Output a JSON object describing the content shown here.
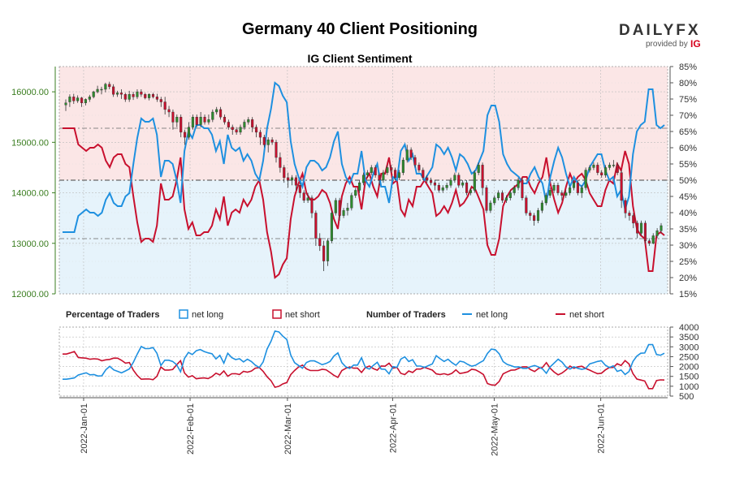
{
  "chart_data": {
    "type": "line",
    "title": "Germany 40 Client Positioning",
    "subtitle": "IG Client Sentiment",
    "brand": {
      "name": "DAILYFX",
      "provided_by": "provided by",
      "ig": "IG"
    },
    "price_axis": {
      "ticks": [
        "12000.00",
        "13000.00",
        "14000.00",
        "15000.00",
        "16000.00"
      ],
      "range": [
        12000,
        16500
      ],
      "color": "#3a7d1f"
    },
    "percent_axis": {
      "ticks": [
        "15%",
        "20%",
        "25%",
        "30%",
        "35%",
        "40%",
        "45%",
        "50%",
        "55%",
        "60%",
        "65%",
        "70%",
        "75%",
        "80%",
        "85%"
      ],
      "range": [
        15,
        85
      ]
    },
    "traders_axis": {
      "ticks": [
        "500",
        "1000",
        "1500",
        "2000",
        "2500",
        "3000",
        "3500",
        "4000"
      ],
      "range": [
        500,
        4000
      ]
    },
    "x_labels": [
      "2022-Jan-01",
      "2022-Feb-01",
      "2022-Mar-01",
      "2022-Apr-01",
      "2022-May-01",
      "2022-Jun-01"
    ],
    "legend": {
      "pct_header": "Percentage of Traders",
      "pct_long": "net long",
      "pct_short": "net short",
      "num_header": "Number of Traders",
      "num_long": "net long",
      "num_short": "net short"
    },
    "colors": {
      "net_long": "#1e90e0",
      "net_short": "#c8102e",
      "up_candle": "#2e8b2e",
      "down_candle": "#c8102e",
      "bg_long": "#e6f3fb",
      "bg_short": "#fbe6e6"
    },
    "reference_lines_pct": [
      32,
      50,
      66
    ],
    "net_long_pct": [
      34,
      34,
      34,
      34,
      39,
      40,
      41,
      40,
      40,
      39,
      40,
      44,
      46,
      43,
      42,
      42,
      45,
      46,
      55,
      63,
      69,
      68,
      68,
      69,
      64,
      51,
      56,
      56,
      55,
      50,
      43,
      59,
      65,
      63,
      67,
      67,
      66,
      66,
      64,
      59,
      62,
      55,
      64,
      60,
      59,
      60,
      56,
      58,
      56,
      52,
      50,
      56,
      66,
      72,
      80,
      79,
      76,
      74,
      62,
      55,
      51,
      48,
      54,
      56,
      56,
      55,
      53,
      54,
      57,
      62,
      65,
      55,
      51,
      49,
      52,
      52,
      59,
      50,
      48,
      52,
      55,
      48,
      48,
      43,
      51,
      50,
      59,
      61,
      56,
      58,
      52,
      52,
      50,
      52,
      54,
      61,
      60,
      58,
      60,
      57,
      53,
      58,
      57,
      55,
      52,
      53,
      56,
      59,
      70,
      73,
      73,
      68,
      58,
      55,
      53,
      52,
      51,
      49,
      49,
      52,
      54,
      51,
      49,
      43,
      51,
      56,
      60,
      57,
      52,
      48,
      51,
      49,
      48,
      50,
      54,
      56,
      58,
      58,
      53,
      50,
      51,
      45,
      47,
      41,
      45,
      58,
      65,
      67,
      68,
      78,
      78,
      67,
      66,
      67
    ],
    "traders_total": [
      2100,
      2100,
      2150,
      2200,
      2120,
      2140,
      2160,
      2080,
      2100,
      2050,
      2010,
      2200,
      2300,
      2240,
      2200,
      2100,
      2080,
      2150,
      2120,
      2200,
      2300,
      2250,
      2250,
      2260,
      2200,
      2120,
      2180,
      2180,
      2160,
      2200,
      2120,
      2150,
      2200,
      2180,
      2200,
      2250,
      2200,
      2150,
      2180,
      2130,
      2180,
      2080,
      2200,
      2150,
      2100,
      2100,
      2100,
      2150,
      2120,
      2100,
      2050,
      2100,
      2300,
      2400,
      2500,
      2500,
      2450,
      2400,
      2200,
      2100,
      2120,
      2100,
      2150,
      2150,
      2150,
      2100,
      2080,
      2100,
      2080,
      2150,
      2180,
      2100,
      2050,
      2040,
      2100,
      2100,
      2180,
      2050,
      2050,
      2080,
      2120,
      2050,
      2040,
      2000,
      2060,
      2060,
      2120,
      2150,
      2120,
      2130,
      2050,
      2050,
      2060,
      2070,
      2080,
      2200,
      2100,
      2050,
      2080,
      2030,
      2050,
      2060,
      2060,
      2020,
      2040,
      2050,
      2060,
      2050,
      2000,
      2080,
      2060,
      2050,
      2040,
      2020,
      2030,
      2000,
      2050,
      2050,
      2050,
      2020,
      2000,
      2040,
      2020,
      2030,
      2050,
      2050,
      2080,
      2050,
      2000,
      2050,
      2050,
      2050,
      2040,
      2000,
      2080,
      2060,
      2050,
      2080,
      2050,
      2050,
      2100,
      2050,
      2040,
      2050,
      2040,
      2050,
      2050,
      2100,
      2080,
      2100,
      2100,
      2050,
      2050,
      2100
    ],
    "candles": [
      {
        "o": 15740,
        "c": 15780,
        "h": 15850,
        "l": 15620
      },
      {
        "o": 15800,
        "c": 15900,
        "h": 15950,
        "l": 15700
      },
      {
        "o": 15900,
        "c": 15820,
        "h": 15960,
        "l": 15760
      },
      {
        "o": 15820,
        "c": 15880,
        "h": 15930,
        "l": 15780
      },
      {
        "o": 15880,
        "c": 15780,
        "h": 15900,
        "l": 15700
      },
      {
        "o": 15780,
        "c": 15850,
        "h": 15870,
        "l": 15730
      },
      {
        "o": 15850,
        "c": 15900,
        "h": 15940,
        "l": 15800
      },
      {
        "o": 15900,
        "c": 16000,
        "h": 16020,
        "l": 15870
      },
      {
        "o": 16000,
        "c": 16050,
        "h": 16120,
        "l": 15970
      },
      {
        "o": 16050,
        "c": 16050,
        "h": 16100,
        "l": 15950
      },
      {
        "o": 16050,
        "c": 16150,
        "h": 16180,
        "l": 15990
      },
      {
        "o": 16150,
        "c": 16100,
        "h": 16200,
        "l": 16050
      },
      {
        "o": 16100,
        "c": 15950,
        "h": 16150,
        "l": 15900
      },
      {
        "o": 15950,
        "c": 15980,
        "h": 16020,
        "l": 15900
      },
      {
        "o": 15980,
        "c": 15950,
        "h": 16050,
        "l": 15860
      },
      {
        "o": 15950,
        "c": 15850,
        "h": 15980,
        "l": 15800
      },
      {
        "o": 15850,
        "c": 15950,
        "h": 16020,
        "l": 15800
      },
      {
        "o": 15950,
        "c": 15900,
        "h": 16000,
        "l": 15840
      },
      {
        "o": 15900,
        "c": 16000,
        "h": 16050,
        "l": 15860
      },
      {
        "o": 16000,
        "c": 15950,
        "h": 16050,
        "l": 15900
      },
      {
        "o": 15950,
        "c": 15880,
        "h": 15980,
        "l": 15850
      },
      {
        "o": 15880,
        "c": 15950,
        "h": 15970,
        "l": 15830
      },
      {
        "o": 15950,
        "c": 15900,
        "h": 15980,
        "l": 15870
      },
      {
        "o": 15900,
        "c": 15850,
        "h": 15960,
        "l": 15800
      },
      {
        "o": 15850,
        "c": 15800,
        "h": 15900,
        "l": 15700
      },
      {
        "o": 15800,
        "c": 15650,
        "h": 15900,
        "l": 15550
      },
      {
        "o": 15650,
        "c": 15600,
        "h": 15720,
        "l": 15500
      },
      {
        "o": 15600,
        "c": 15400,
        "h": 15650,
        "l": 15250
      },
      {
        "o": 15400,
        "c": 15500,
        "h": 15550,
        "l": 15300
      },
      {
        "o": 15500,
        "c": 15200,
        "h": 15550,
        "l": 15100
      },
      {
        "o": 15200,
        "c": 15100,
        "h": 15250,
        "l": 14950
      },
      {
        "o": 15100,
        "c": 15300,
        "h": 15400,
        "l": 15050
      },
      {
        "o": 15300,
        "c": 15500,
        "h": 15550,
        "l": 15250
      },
      {
        "o": 15500,
        "c": 15350,
        "h": 15550,
        "l": 15300
      },
      {
        "o": 15350,
        "c": 15500,
        "h": 15600,
        "l": 15300
      },
      {
        "o": 15500,
        "c": 15400,
        "h": 15550,
        "l": 15350
      },
      {
        "o": 15400,
        "c": 15450,
        "h": 15550,
        "l": 15350
      },
      {
        "o": 15450,
        "c": 15600,
        "h": 15650,
        "l": 15400
      },
      {
        "o": 15600,
        "c": 15650,
        "h": 15700,
        "l": 15550
      },
      {
        "o": 15650,
        "c": 15500,
        "h": 15700,
        "l": 15450
      },
      {
        "o": 15500,
        "c": 15400,
        "h": 15550,
        "l": 15350
      },
      {
        "o": 15400,
        "c": 15300,
        "h": 15450,
        "l": 15250
      },
      {
        "o": 15300,
        "c": 15250,
        "h": 15350,
        "l": 15150
      },
      {
        "o": 15250,
        "c": 15200,
        "h": 15300,
        "l": 15150
      },
      {
        "o": 15200,
        "c": 15300,
        "h": 15350,
        "l": 15150
      },
      {
        "o": 15300,
        "c": 15400,
        "h": 15450,
        "l": 15250
      },
      {
        "o": 15400,
        "c": 15450,
        "h": 15500,
        "l": 15350
      },
      {
        "o": 15450,
        "c": 15300,
        "h": 15500,
        "l": 15200
      },
      {
        "o": 15300,
        "c": 15200,
        "h": 15350,
        "l": 15100
      },
      {
        "o": 15200,
        "c": 15100,
        "h": 15250,
        "l": 14950
      },
      {
        "o": 15100,
        "c": 14950,
        "h": 15150,
        "l": 14900
      },
      {
        "o": 14950,
        "c": 15050,
        "h": 15100,
        "l": 14800
      },
      {
        "o": 15050,
        "c": 15000,
        "h": 15100,
        "l": 14950
      },
      {
        "o": 15000,
        "c": 14700,
        "h": 15050,
        "l": 14600
      },
      {
        "o": 14700,
        "c": 14500,
        "h": 14800,
        "l": 14400
      },
      {
        "o": 14500,
        "c": 14300,
        "h": 14550,
        "l": 14200
      },
      {
        "o": 14300,
        "c": 14250,
        "h": 14400,
        "l": 14100
      },
      {
        "o": 14250,
        "c": 14300,
        "h": 14350,
        "l": 14150
      },
      {
        "o": 14300,
        "c": 14150,
        "h": 14350,
        "l": 14050
      },
      {
        "o": 14150,
        "c": 14000,
        "h": 14200,
        "l": 13900
      },
      {
        "o": 14000,
        "c": 13850,
        "h": 14050,
        "l": 13800
      },
      {
        "o": 13850,
        "c": 13900,
        "h": 14000,
        "l": 13800
      },
      {
        "o": 13900,
        "c": 13600,
        "h": 13950,
        "l": 13500
      },
      {
        "o": 13600,
        "c": 13100,
        "h": 13650,
        "l": 12950
      },
      {
        "o": 13100,
        "c": 12950,
        "h": 13200,
        "l": 12850
      },
      {
        "o": 12950,
        "c": 12650,
        "h": 13050,
        "l": 12450
      },
      {
        "o": 12650,
        "c": 13050,
        "h": 13100,
        "l": 12550
      },
      {
        "o": 13050,
        "c": 13600,
        "h": 13650,
        "l": 13000
      },
      {
        "o": 13600,
        "c": 13850,
        "h": 13900,
        "l": 13550
      },
      {
        "o": 13850,
        "c": 13550,
        "h": 13900,
        "l": 13450
      },
      {
        "o": 13550,
        "c": 13650,
        "h": 13700,
        "l": 13500
      },
      {
        "o": 13650,
        "c": 13700,
        "h": 13800,
        "l": 13550
      },
      {
        "o": 13700,
        "c": 13950,
        "h": 14000,
        "l": 13650
      },
      {
        "o": 13950,
        "c": 14050,
        "h": 14100,
        "l": 13900
      },
      {
        "o": 14050,
        "c": 14200,
        "h": 14250,
        "l": 14000
      },
      {
        "o": 14200,
        "c": 14350,
        "h": 14400,
        "l": 14150
      },
      {
        "o": 14350,
        "c": 14400,
        "h": 14450,
        "l": 14300
      },
      {
        "o": 14400,
        "c": 14500,
        "h": 14550,
        "l": 14350
      },
      {
        "o": 14500,
        "c": 14350,
        "h": 14550,
        "l": 14300
      },
      {
        "o": 14350,
        "c": 14250,
        "h": 14400,
        "l": 14150
      },
      {
        "o": 14250,
        "c": 14400,
        "h": 14450,
        "l": 14200
      },
      {
        "o": 14400,
        "c": 14500,
        "h": 14550,
        "l": 14350
      },
      {
        "o": 14500,
        "c": 14450,
        "h": 14550,
        "l": 14400
      },
      {
        "o": 14450,
        "c": 14300,
        "h": 14500,
        "l": 14250
      },
      {
        "o": 14300,
        "c": 14400,
        "h": 14450,
        "l": 14250
      },
      {
        "o": 14400,
        "c": 14650,
        "h": 14700,
        "l": 14350
      },
      {
        "o": 14650,
        "c": 14850,
        "h": 14950,
        "l": 14600
      },
      {
        "o": 14850,
        "c": 14700,
        "h": 14900,
        "l": 14650
      },
      {
        "o": 14700,
        "c": 14550,
        "h": 14750,
        "l": 14500
      },
      {
        "o": 14550,
        "c": 14450,
        "h": 14600,
        "l": 14400
      },
      {
        "o": 14450,
        "c": 14300,
        "h": 14500,
        "l": 14250
      },
      {
        "o": 14300,
        "c": 14250,
        "h": 14350,
        "l": 14200
      },
      {
        "o": 14250,
        "c": 14200,
        "h": 14300,
        "l": 14150
      },
      {
        "o": 14200,
        "c": 14150,
        "h": 14250,
        "l": 14050
      },
      {
        "o": 14150,
        "c": 14050,
        "h": 14200,
        "l": 14000
      },
      {
        "o": 14050,
        "c": 14100,
        "h": 14150,
        "l": 14000
      },
      {
        "o": 14100,
        "c": 14150,
        "h": 14200,
        "l": 14050
      },
      {
        "o": 14150,
        "c": 14250,
        "h": 14300,
        "l": 14100
      },
      {
        "o": 14250,
        "c": 14350,
        "h": 14400,
        "l": 14200
      },
      {
        "o": 14350,
        "c": 14150,
        "h": 14400,
        "l": 14100
      },
      {
        "o": 14150,
        "c": 14200,
        "h": 14250,
        "l": 14100
      },
      {
        "o": 14200,
        "c": 14000,
        "h": 14250,
        "l": 13950
      },
      {
        "o": 14000,
        "c": 14050,
        "h": 14100,
        "l": 13950
      },
      {
        "o": 14050,
        "c": 14400,
        "h": 14450,
        "l": 14000
      },
      {
        "o": 14400,
        "c": 14550,
        "h": 14600,
        "l": 14350
      },
      {
        "o": 14550,
        "c": 14100,
        "h": 14600,
        "l": 13950
      },
      {
        "o": 14100,
        "c": 13650,
        "h": 14150,
        "l": 13600
      },
      {
        "o": 13650,
        "c": 13800,
        "h": 13850,
        "l": 13600
      },
      {
        "o": 13800,
        "c": 13900,
        "h": 13950,
        "l": 13750
      },
      {
        "o": 13900,
        "c": 14000,
        "h": 14050,
        "l": 13850
      },
      {
        "o": 14000,
        "c": 13850,
        "h": 14050,
        "l": 13800
      },
      {
        "o": 13850,
        "c": 13900,
        "h": 13950,
        "l": 13800
      },
      {
        "o": 13900,
        "c": 14000,
        "h": 14050,
        "l": 13850
      },
      {
        "o": 14000,
        "c": 14100,
        "h": 14150,
        "l": 13950
      },
      {
        "o": 14100,
        "c": 14250,
        "h": 14300,
        "l": 14050
      },
      {
        "o": 14250,
        "c": 13900,
        "h": 14300,
        "l": 13850
      },
      {
        "o": 13900,
        "c": 13600,
        "h": 13950,
        "l": 13550
      },
      {
        "o": 13600,
        "c": 13550,
        "h": 13650,
        "l": 13450
      },
      {
        "o": 13550,
        "c": 13450,
        "h": 13600,
        "l": 13350
      },
      {
        "o": 13450,
        "c": 13650,
        "h": 13700,
        "l": 13400
      },
      {
        "o": 13650,
        "c": 13800,
        "h": 13850,
        "l": 13600
      },
      {
        "o": 13800,
        "c": 13950,
        "h": 14000,
        "l": 13750
      },
      {
        "o": 13950,
        "c": 14050,
        "h": 14100,
        "l": 13900
      },
      {
        "o": 14050,
        "c": 14150,
        "h": 14200,
        "l": 14000
      },
      {
        "o": 14150,
        "c": 14000,
        "h": 14200,
        "l": 13950
      },
      {
        "o": 14000,
        "c": 13950,
        "h": 14050,
        "l": 13850
      },
      {
        "o": 13950,
        "c": 14000,
        "h": 14050,
        "l": 13900
      },
      {
        "o": 14000,
        "c": 14100,
        "h": 14150,
        "l": 13950
      },
      {
        "o": 14100,
        "c": 14200,
        "h": 14250,
        "l": 14050
      },
      {
        "o": 14200,
        "c": 14000,
        "h": 14250,
        "l": 13950
      },
      {
        "o": 14000,
        "c": 14100,
        "h": 14150,
        "l": 13900
      },
      {
        "o": 14100,
        "c": 14450,
        "h": 14500,
        "l": 14050
      },
      {
        "o": 14450,
        "c": 14500,
        "h": 14550,
        "l": 14400
      },
      {
        "o": 14500,
        "c": 14550,
        "h": 14600,
        "l": 14450
      },
      {
        "o": 14550,
        "c": 14400,
        "h": 14600,
        "l": 14350
      },
      {
        "o": 14400,
        "c": 14350,
        "h": 14450,
        "l": 14300
      },
      {
        "o": 14350,
        "c": 14500,
        "h": 14550,
        "l": 14300
      },
      {
        "o": 14500,
        "c": 14550,
        "h": 14600,
        "l": 14450
      },
      {
        "o": 14550,
        "c": 14550,
        "h": 14650,
        "l": 14500
      },
      {
        "o": 14550,
        "c": 14400,
        "h": 14600,
        "l": 14350
      },
      {
        "o": 14400,
        "c": 13850,
        "h": 14450,
        "l": 13700
      },
      {
        "o": 13850,
        "c": 13600,
        "h": 13900,
        "l": 13500
      },
      {
        "o": 13600,
        "c": 13550,
        "h": 13650,
        "l": 13450
      },
      {
        "o": 13550,
        "c": 13400,
        "h": 13600,
        "l": 13300
      },
      {
        "o": 13400,
        "c": 13200,
        "h": 13450,
        "l": 13100
      },
      {
        "o": 13200,
        "c": 13400,
        "h": 13450,
        "l": 13150
      },
      {
        "o": 13400,
        "c": 13050,
        "h": 13450,
        "l": 13000
      },
      {
        "o": 13050,
        "c": 13000,
        "h": 13100,
        "l": 12950
      },
      {
        "o": 13000,
        "c": 13150,
        "h": 13200,
        "l": 12980
      },
      {
        "o": 13150,
        "c": 13250,
        "h": 13300,
        "l": 13100
      },
      {
        "o": 13250,
        "c": 13350,
        "h": 13400,
        "l": 13200
      }
    ]
  }
}
